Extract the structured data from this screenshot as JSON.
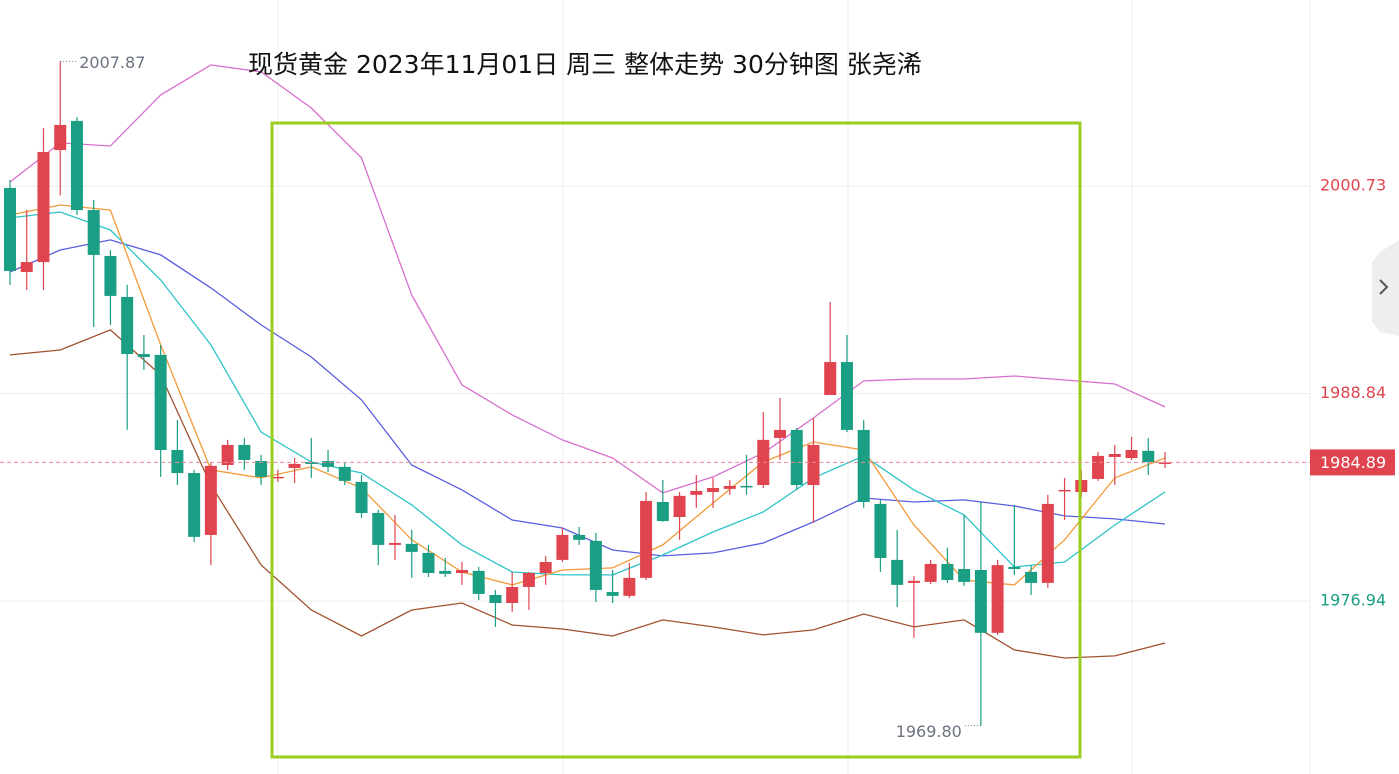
{
  "chart_data": {
    "type": "candlestick",
    "title": "现货黄金  2023年11月01日 周三 整体走势 30分钟图  张尧浠",
    "up_color": "#e0454f",
    "down_color": "#1a9e84",
    "ylim": [
      1967.03,
      2011.39
    ],
    "yticks": [
      2000.73,
      1988.84,
      1976.94
    ],
    "ytick_colors": [
      "#e0454f",
      "#e0454f",
      "#1a9e84"
    ],
    "grid": true,
    "open": [
      2000.62,
      1995.8,
      1996.37,
      2002.79,
      2004.46,
      1999.35,
      1996.72,
      1994.37,
      1991.1,
      1991.05,
      1985.6,
      1984.28,
      1980.73,
      1984.74,
      1985.89,
      1984.97,
      1984.0,
      1984.57,
      1984.91,
      1984.97,
      1984.63,
      1983.77,
      1981.99,
      1980.16,
      1980.22,
      1979.7,
      1978.67,
      1978.55,
      1978.67,
      1977.29,
      1976.83,
      1977.75,
      1978.55,
      1979.3,
      1980.73,
      1980.39,
      1977.46,
      1977.24,
      1978.27,
      1982.62,
      1981.76,
      1983.03,
      1983.19,
      1983.37,
      1983.54,
      1983.59,
      1986.29,
      1986.75,
      1983.59,
      1988.75,
      1990.64,
      1986.75,
      1982.51,
      1979.3,
      1977.98,
      1978.04,
      1979.07,
      1978.78,
      1978.72,
      1975.12,
      1978.9,
      1978.61,
      1977.98,
      1983.25,
      1983.19,
      1983.94,
      1985.2,
      1985.14,
      1985.55,
      1984.8
    ],
    "high": [
      2001.07,
      1999.35,
      2004.05,
      2007.87,
      2004.68,
      1999.93,
      1997.06,
      1995.06,
      1992.19,
      1991.62,
      1987.32,
      1984.46,
      1984.86,
      1986.18,
      1986.29,
      1985.32,
      1984.46,
      1985.14,
      1986.29,
      1985.6,
      1984.91,
      1984.17,
      1982.17,
      1981.88,
      1981.02,
      1980.16,
      1979.41,
      1979.18,
      1978.9,
      1977.58,
      1978.61,
      1978.61,
      1979.53,
      1981.13,
      1981.19,
      1980.85,
      1978.72,
      1979.13,
      1983.19,
      1983.88,
      1983.19,
      1984.17,
      1984.0,
      1983.88,
      1985.32,
      1987.78,
      1988.58,
      1986.86,
      1987.44,
      1994.08,
      1992.19,
      1987.32,
      1982.74,
      1981.02,
      1978.38,
      1979.3,
      1980.0,
      1981.88,
      1982.62,
      1979.3,
      1982.45,
      1979.0,
      1983.03,
      1984.0,
      1984.46,
      1985.49,
      1985.89,
      1986.35,
      1986.29,
      1985.49
    ],
    "low": [
      1995.06,
      1994.77,
      1994.77,
      2000.2,
      1999.07,
      1992.65,
      1992.77,
      1986.75,
      1990.19,
      1984.06,
      1983.59,
      1980.33,
      1979.0,
      1984.46,
      1984.46,
      1983.59,
      1983.77,
      1983.71,
      1984.0,
      1984.34,
      1983.59,
      1981.71,
      1979.0,
      1979.3,
      1978.27,
      1978.32,
      1978.32,
      1977.87,
      1977.0,
      1975.46,
      1976.32,
      1976.43,
      1977.87,
      1979.18,
      1980.16,
      1976.89,
      1976.83,
      1977.12,
      1978.15,
      1981.48,
      1980.45,
      1982.28,
      1982.28,
      1983.03,
      1983.03,
      1983.42,
      1985.03,
      1983.31,
      1981.42,
      1988.75,
      1986.63,
      1982.28,
      1978.61,
      1976.6,
      1974.83,
      1977.92,
      1977.98,
      1977.81,
      1969.8,
      1975.0,
      1978.44,
      1977.29,
      1977.7,
      1981.59,
      1982.91,
      1983.83,
      1983.59,
      1985.03,
      1984.17,
      1984.57
    ],
    "close": [
      1995.86,
      1996.37,
      2002.68,
      2004.23,
      1999.35,
      1996.78,
      1994.43,
      1991.1,
      1990.93,
      1985.6,
      1984.28,
      1980.62,
      1984.69,
      1985.89,
      1985.03,
      1984.06,
      1984.06,
      1984.8,
      1984.8,
      1984.63,
      1983.83,
      1981.99,
      1980.16,
      1980.27,
      1979.76,
      1978.55,
      1978.5,
      1978.72,
      1977.35,
      1976.83,
      1977.75,
      1978.55,
      1979.18,
      1980.73,
      1980.45,
      1977.58,
      1977.24,
      1978.27,
      1982.68,
      1981.53,
      1982.97,
      1983.25,
      1983.42,
      1983.54,
      1983.48,
      1986.18,
      1986.75,
      1983.59,
      1985.89,
      1990.64,
      1986.75,
      1982.62,
      1979.41,
      1977.87,
      1978.1,
      1979.07,
      1978.15,
      1978.04,
      1975.12,
      1979.0,
      1978.78,
      1977.98,
      1982.51,
      1983.31,
      1983.88,
      1985.26,
      1985.37,
      1985.6,
      1984.91,
      1984.89
    ],
    "lines": [
      {
        "color": "#d86fd0",
        "x": [
          0,
          3,
          6,
          9,
          12,
          15,
          18,
          21,
          24,
          27,
          30,
          33,
          36,
          39,
          42,
          45,
          48,
          51,
          54,
          57,
          60,
          63,
          66,
          69
        ],
        "values": [
          2000.96,
          2003.2,
          2003.02,
          2005.95,
          2007.67,
          2007.27,
          2005.2,
          2002.34,
          1994.48,
          1989.33,
          1987.61,
          1986.18,
          1985.14,
          1983.14,
          1984.06,
          1985.43,
          1987.44,
          1989.56,
          1989.67,
          1989.67,
          1989.84,
          1989.61,
          1989.38,
          1988.07
        ]
      },
      {
        "color": "#a0522d",
        "x": [
          0,
          3,
          6,
          9,
          12,
          15,
          18,
          21,
          24,
          27,
          30,
          33,
          36,
          39,
          42,
          45,
          48,
          51,
          54,
          57,
          60,
          63,
          66,
          69
        ],
        "values": [
          1991.05,
          1991.33,
          1992.48,
          1989.9,
          1983.59,
          1979.01,
          1976.43,
          1974.94,
          1976.43,
          1976.83,
          1975.57,
          1975.34,
          1974.94,
          1975.86,
          1975.46,
          1975.0,
          1975.29,
          1976.2,
          1975.46,
          1975.86,
          1974.14,
          1973.68,
          1973.8,
          1974.54
        ]
      },
      {
        "color": "#5a5ee0",
        "x": [
          0,
          3,
          6,
          9,
          12,
          15,
          18,
          21,
          24,
          27,
          30,
          33,
          36,
          39,
          42,
          45,
          48,
          51,
          54,
          57,
          60,
          63,
          66,
          69
        ],
        "values": [
          1995.8,
          1997.06,
          1997.64,
          1996.78,
          1994.89,
          1992.77,
          1990.93,
          1988.47,
          1984.74,
          1983.31,
          1981.59,
          1981.13,
          1979.87,
          1979.53,
          1979.7,
          1980.27,
          1981.48,
          1982.85,
          1982.62,
          1982.74,
          1982.39,
          1981.82,
          1981.65,
          1981.36
        ]
      },
      {
        "color": "#2ec4c9",
        "x": [
          0,
          3,
          6,
          9,
          12,
          15,
          18,
          21,
          24,
          27,
          30,
          33,
          36,
          39,
          42,
          45,
          48,
          51,
          54,
          57,
          60,
          63,
          66,
          69
        ],
        "values": [
          1998.9,
          1999.24,
          1998.21,
          1995.34,
          1991.62,
          1986.63,
          1984.91,
          1984.28,
          1982.45,
          1980.16,
          1978.61,
          1978.44,
          1978.44,
          1979.58,
          1980.9,
          1982.05,
          1984.0,
          1985.26,
          1983.31,
          1981.88,
          1978.9,
          1979.18,
          1981.3,
          1983.19
        ]
      },
      {
        "color": "#f29b38",
        "x": [
          0,
          3,
          6,
          9,
          12,
          15,
          18,
          21,
          24,
          27,
          30,
          33,
          36,
          39,
          42,
          45,
          48,
          51,
          54,
          57,
          60,
          63,
          66,
          69
        ],
        "values": [
          1999.07,
          1999.64,
          1999.35,
          1991.62,
          1984.46,
          1984.0,
          1984.63,
          1983.42,
          1980.45,
          1978.61,
          1977.87,
          1978.72,
          1978.84,
          1980.16,
          1982.56,
          1984.91,
          1986.06,
          1985.6,
          1981.3,
          1978.15,
          1977.87,
          1980.45,
          1984.0,
          1985.14
        ]
      }
    ],
    "high_label": 2007.87,
    "low_label": {
      "value": 1969.8,
      "label": "1969.80"
    },
    "last_price": 1984.89
  }
}
